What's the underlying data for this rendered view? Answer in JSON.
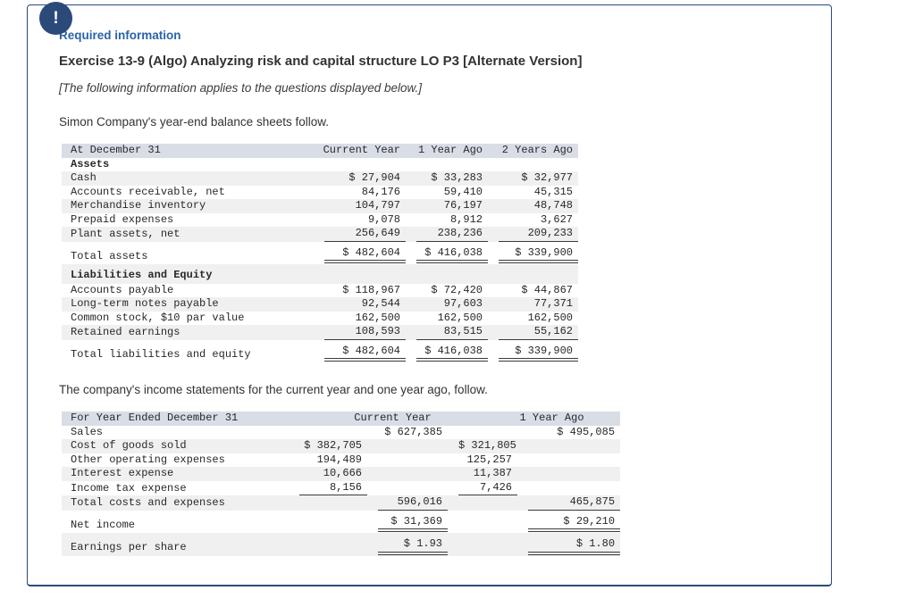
{
  "badge": {
    "glyph": "!"
  },
  "texts": {
    "required_label": "Required information",
    "title": "Exercise 13-9 (Algo) Analyzing risk and capital structure LO P3 [Alternate Version]",
    "note": "[The following information applies to the questions displayed below.]",
    "balance_intro": "Simon Company's year-end balance sheets follow.",
    "income_intro": "The company's income statements for the current year and one year ago, follow."
  },
  "colors": {
    "navy": "#2b4a7a",
    "link_blue": "#2a63a8",
    "header_band": "#d9dde6",
    "row_stripe": "#f0f0f1",
    "rule": "#3a3a3a",
    "table_text": "#26282b"
  },
  "balance_sheet": {
    "columns": [
      "At December 31",
      "Current Year",
      "1 Year Ago",
      "2 Years Ago"
    ],
    "rows": [
      {
        "label": "Assets",
        "bold": true,
        "cells": [
          "",
          "",
          ""
        ]
      },
      {
        "label": "Cash",
        "cells": [
          "$ 27,904",
          "$ 33,283",
          "$ 32,977"
        ]
      },
      {
        "label": "Accounts receivable, net",
        "cells": [
          "84,176",
          "59,410",
          "45,315"
        ]
      },
      {
        "label": "Merchandise inventory",
        "cells": [
          "104,797",
          "76,197",
          "48,748"
        ]
      },
      {
        "label": "Prepaid expenses",
        "cells": [
          "9,078",
          "8,912",
          "3,627"
        ]
      },
      {
        "label": "Plant assets, net",
        "cells": [
          "256,649",
          "238,236",
          "209,233"
        ],
        "ul": [
          "s",
          "s",
          "s"
        ]
      },
      {
        "label": "Total assets",
        "cells": [
          "$ 482,604",
          "$ 416,038",
          "$ 339,900"
        ],
        "ul": [
          "d",
          "d",
          "d"
        ],
        "tall": true
      },
      {
        "label": "Liabilities and Equity",
        "bold": true,
        "cells": [
          "",
          "",
          ""
        ],
        "tall": true
      },
      {
        "label": "Accounts payable",
        "cells": [
          "$ 118,967",
          "$ 72,420",
          "$ 44,867"
        ]
      },
      {
        "label": "Long-term notes payable",
        "cells": [
          "92,544",
          "97,603",
          "77,371"
        ]
      },
      {
        "label": "Common stock, $10 par value",
        "cells": [
          "162,500",
          "162,500",
          "162,500"
        ]
      },
      {
        "label": "Retained earnings",
        "cells": [
          "108,593",
          "83,515",
          "55,162"
        ],
        "ul": [
          "s",
          "s",
          "s"
        ]
      },
      {
        "label": "Total liabilities and equity",
        "cells": [
          "$ 482,604",
          "$ 416,038",
          "$ 339,900"
        ],
        "ul": [
          "d",
          "d",
          "d"
        ],
        "tall": true
      }
    ]
  },
  "income_statement": {
    "header": {
      "label": "For Year Ended December 31",
      "group1": "Current Year",
      "group2": "1 Year Ago"
    },
    "rows": [
      {
        "label": "Sales",
        "cells": [
          "",
          "$ 627,385",
          "",
          "$ 495,085"
        ]
      },
      {
        "label": "Cost of goods sold",
        "cells": [
          "$ 382,705",
          "",
          "$ 321,805",
          ""
        ]
      },
      {
        "label": "Other operating expenses",
        "cells": [
          "194,489",
          "",
          "125,257",
          ""
        ]
      },
      {
        "label": "Interest expense",
        "cells": [
          "10,666",
          "",
          "11,387",
          ""
        ]
      },
      {
        "label": "Income tax expense",
        "cells": [
          "8,156",
          "",
          "7,426",
          ""
        ],
        "ul": [
          "s",
          "",
          "s",
          ""
        ]
      },
      {
        "label": "Total costs and expenses",
        "cells": [
          "",
          "596,016",
          "",
          "465,875"
        ],
        "ul": [
          "",
          "s",
          "",
          "s"
        ]
      },
      {
        "label": "Net income",
        "cells": [
          "",
          "$ 31,369",
          "",
          "$ 29,210"
        ],
        "ul": [
          "",
          "d",
          "",
          "d"
        ],
        "tall": true
      },
      {
        "label": "Earnings per share",
        "cells": [
          "",
          "$ 1.93",
          "",
          "$ 1.80"
        ],
        "ul": [
          "",
          "d",
          "",
          "d"
        ],
        "tall": true
      }
    ]
  }
}
